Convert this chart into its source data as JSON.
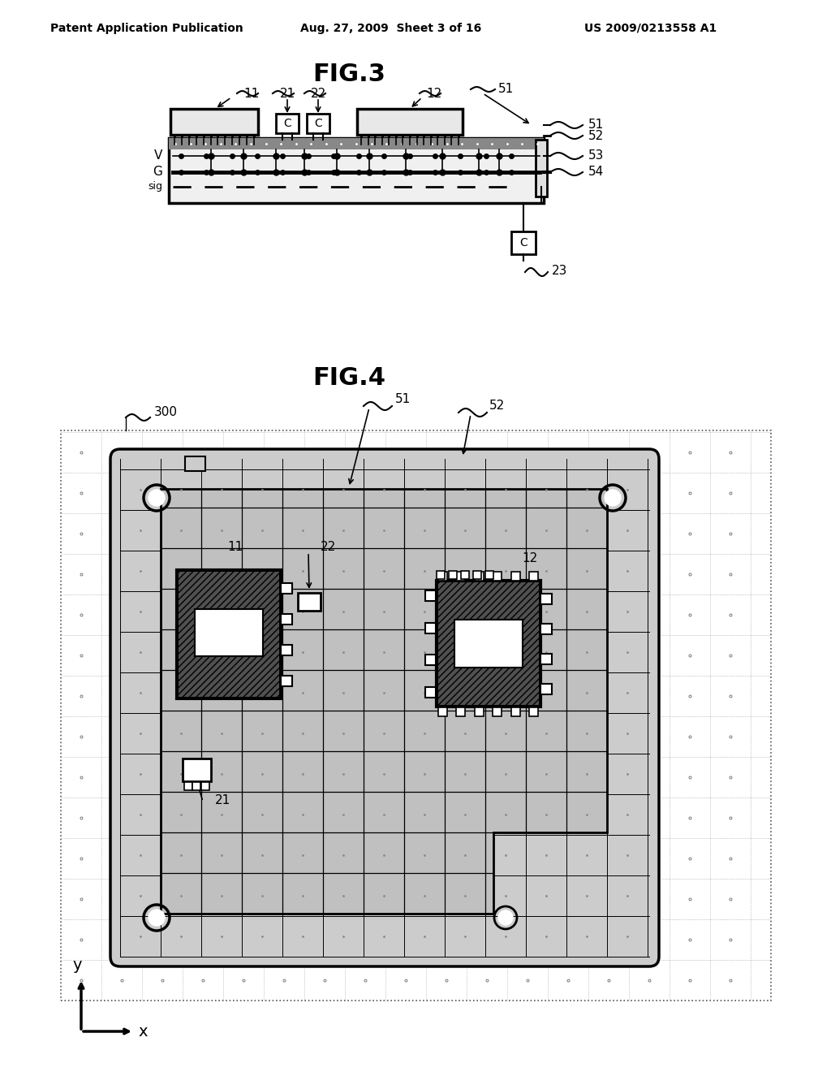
{
  "header_left": "Patent Application Publication",
  "header_center": "Aug. 27, 2009  Sheet 3 of 16",
  "header_right": "US 2009/0213558 A1",
  "fig3_title": "FIG.3",
  "fig4_title": "FIG.4",
  "bg_color": "#ffffff",
  "line_color": "#000000",
  "gray_light": "#d0d0d0",
  "gray_med": "#b8b8b8",
  "gray_dark": "#505050"
}
